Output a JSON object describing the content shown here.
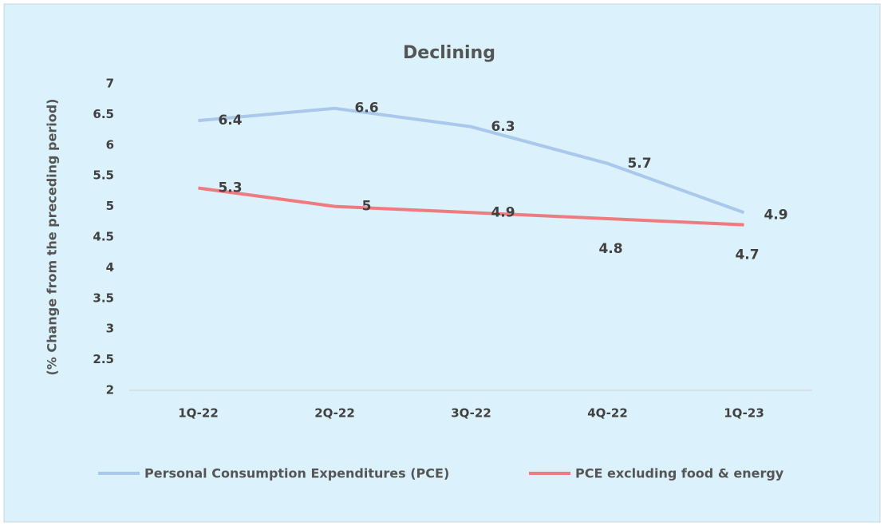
{
  "chart_data": {
    "type": "line",
    "title": "Declining",
    "y_label": "(% Change from the preceding period)",
    "categories": [
      "1Q-22",
      "2Q-22",
      "3Q-22",
      "4Q-22",
      "1Q-23"
    ],
    "series": [
      {
        "name": "Personal Consumption Expenditures (PCE)",
        "color": "#a9c8ec",
        "values": [
          6.4,
          6.6,
          6.3,
          5.7,
          4.9
        ]
      },
      {
        "name": "PCE excluding food & energy",
        "color": "#ee7b7f",
        "values": [
          5.3,
          5,
          4.9,
          4.8,
          4.7
        ]
      }
    ],
    "ylim": [
      2,
      7
    ],
    "yticks": [
      2,
      2.5,
      3,
      3.5,
      4,
      4.5,
      5,
      5.5,
      6,
      6.5,
      7
    ],
    "grid": false,
    "legend": "bottom"
  }
}
